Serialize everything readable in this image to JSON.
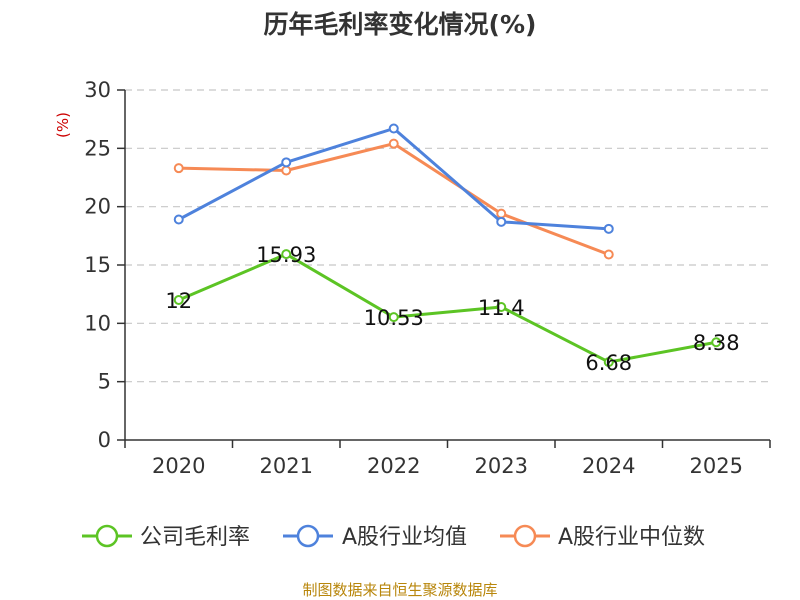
{
  "chart_data": {
    "type": "line",
    "title": "历年毛利率变化情况(%)",
    "xlabel": "",
    "ylabel": "(%)",
    "categories": [
      "2020",
      "2021",
      "2022",
      "2023",
      "2024",
      "2025"
    ],
    "ylim": [
      0,
      30
    ],
    "yticks": [
      0,
      5,
      10,
      15,
      20,
      25,
      30
    ],
    "grid": true,
    "legend_position": "bottom",
    "series": [
      {
        "name": "公司毛利率",
        "color": "#5cc424",
        "values": [
          12,
          15.93,
          10.53,
          11.4,
          6.68,
          8.38
        ],
        "labels": [
          "12",
          "15.93",
          "10.53",
          "11.4",
          "6.68",
          "8.38"
        ]
      },
      {
        "name": "A股行业均值",
        "color": "#4e82dc",
        "values": [
          18.9,
          23.8,
          26.7,
          18.7,
          18.1,
          null
        ]
      },
      {
        "name": "A股行业中位数",
        "color": "#f68a55",
        "values": [
          23.3,
          23.1,
          25.4,
          19.4,
          15.9,
          null
        ]
      }
    ]
  },
  "footer": {
    "source": "制图数据来自恒生聚源数据库"
  }
}
